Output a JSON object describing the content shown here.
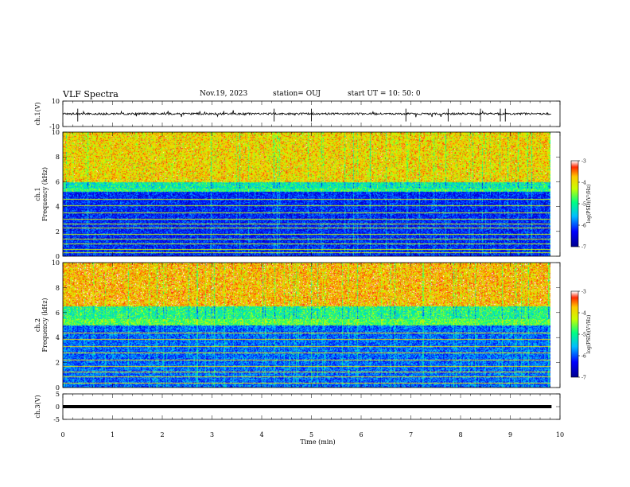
{
  "header": {
    "title": "VLF Spectra",
    "date": "Nov.19, 2023",
    "station": "station= OUJ",
    "start_ut": "start  UT =   10: 50: 0"
  },
  "chart_data": [
    {
      "type": "line",
      "panel": "waveform-ch1",
      "ylabel": "ch.1(V)",
      "ytick_labels": [
        "10",
        "-10"
      ],
      "ylim": [
        -10,
        10
      ],
      "xlim": [
        0,
        10
      ],
      "description_values": {
        "baseline": 0,
        "noise_amplitude": 1.5
      },
      "series": [
        {
          "values_hint": "noisy trace around 0 with occasional spikes",
          "spikes_at": [
            0.3,
            4.25,
            5.0,
            6.9,
            7.75,
            8.4,
            8.8,
            8.9
          ]
        }
      ]
    },
    {
      "type": "heatmap",
      "panel": "spectrogram-ch1",
      "ylabel_line1": "ch.1",
      "ylabel_line2": "Frequency (kHz)",
      "yticks": [
        0,
        2,
        4,
        6,
        8,
        10
      ],
      "ylim": [
        0,
        10
      ],
      "xlim": [
        0,
        9.8
      ],
      "colorbar": {
        "label": "log(PSD)(V²/Hz)",
        "ticks": [
          -3,
          -4,
          -5,
          -6,
          -7
        ],
        "range": [
          -7,
          -3
        ],
        "colors": [
          "#00008b",
          "#0000ff",
          "#00c8ff",
          "#00ff80",
          "#ffff00",
          "#ff0000",
          "#ffffff"
        ]
      },
      "bands_khz": [
        {
          "from": 6.0,
          "to": 10.0,
          "log_psd": -3.8
        },
        {
          "from": 5.2,
          "to": 6.0,
          "log_psd": -5.0
        },
        {
          "from": 0,
          "to": 5.2,
          "log_psd": -6.3
        }
      ],
      "lines_khz": [
        0.3,
        0.6,
        1.0,
        1.4,
        1.8,
        2.3,
        2.6,
        3.0,
        3.5,
        4.1,
        4.6
      ]
    },
    {
      "type": "heatmap",
      "panel": "spectrogram-ch2",
      "ylabel_line1": "ch.2",
      "ylabel_line2": "Frequency (kHz)",
      "yticks": [
        0,
        2,
        4,
        6,
        8,
        10
      ],
      "ylim": [
        0,
        10
      ],
      "xlim": [
        0,
        9.8
      ],
      "colorbar": {
        "label": "log(PSD)(V²/Hz)",
        "ticks": [
          -3,
          -4,
          -5,
          -6,
          -7
        ],
        "range": [
          -7,
          -3
        ],
        "colors": [
          "#00008b",
          "#0000ff",
          "#00c8ff",
          "#00ff80",
          "#ffff00",
          "#ff0000",
          "#ffffff"
        ]
      },
      "bands_khz": [
        {
          "from": 6.5,
          "to": 10.0,
          "log_psd": -3.6
        },
        {
          "from": 5.0,
          "to": 6.5,
          "log_psd": -4.8
        },
        {
          "from": 0,
          "to": 5.0,
          "log_psd": -6.0
        }
      ],
      "lines_khz": [
        0.4,
        0.9,
        1.3,
        1.7,
        2.2,
        2.8,
        3.3,
        3.9,
        4.4
      ]
    },
    {
      "type": "line",
      "panel": "waveform-ch3",
      "ylabel": "ch.3(V)",
      "ytick_labels": [
        "5",
        "0",
        "-5"
      ],
      "ylim": [
        -5,
        5
      ],
      "xlim": [
        0,
        10
      ],
      "series": [
        {
          "values_hint": "constant level",
          "level": 0
        }
      ]
    }
  ],
  "xaxis": {
    "label": "Time (min)",
    "ticks": [
      0,
      1,
      2,
      3,
      4,
      5,
      6,
      7,
      8,
      9,
      10
    ],
    "tick_labels": [
      "0",
      "1",
      "2",
      "3",
      "4",
      "5",
      "6",
      "7",
      "8",
      "9",
      "10"
    ]
  }
}
